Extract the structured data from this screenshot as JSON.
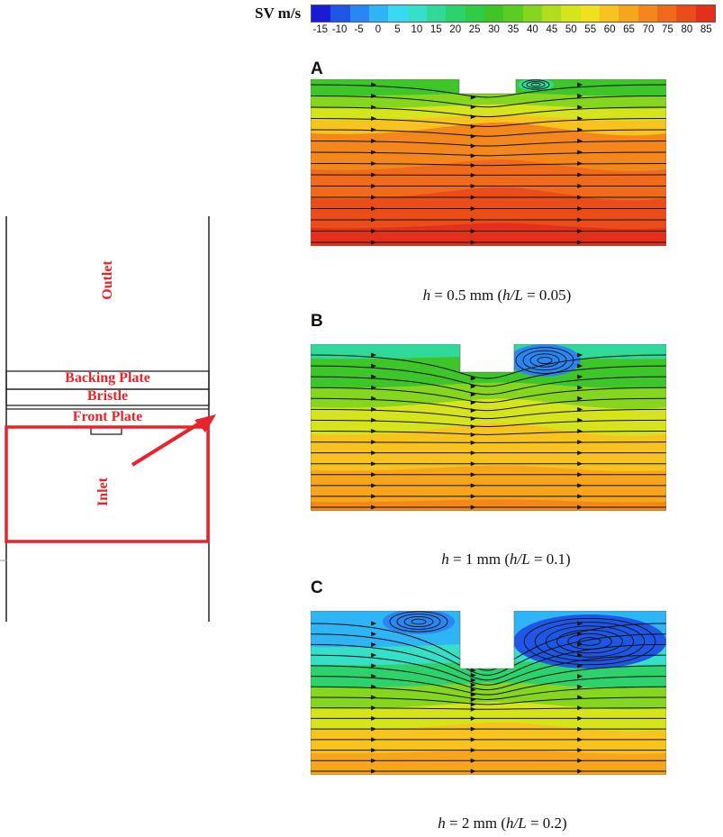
{
  "legend": {
    "title": "SV m/s",
    "ticks": [
      "-15",
      "-10",
      "-5",
      "0",
      "5",
      "10",
      "15",
      "20",
      "25",
      "30",
      "35",
      "40",
      "45",
      "50",
      "55",
      "60",
      "65",
      "70",
      "75",
      "80",
      "85"
    ],
    "colors": [
      "#1b1bd6",
      "#1e56e6",
      "#2a86f2",
      "#2fb4f6",
      "#3bd8f2",
      "#36e0c8",
      "#2fd99a",
      "#2ed26c",
      "#2fcb44",
      "#3ec52a",
      "#5ccc22",
      "#86d51e",
      "#b0dd1e",
      "#d6e41e",
      "#f0e020",
      "#f7c41f",
      "#f6a51d",
      "#f3871b",
      "#ef6a1a",
      "#ea4d1a",
      "#e3301a"
    ]
  },
  "schematic": {
    "outlet_label": "Outlet",
    "backing_plate_label": "Backing Plate",
    "bristle_label": "Bristle",
    "front_plate_label": "Front Plate",
    "inlet_label": "Inlet",
    "highlight_color": "#e8232b"
  },
  "panels": [
    {
      "letter": "A",
      "caption_italic_h": "h",
      "caption_mid": " = 0.5 mm (",
      "caption_italic_hl": "h/L",
      "caption_end": " = 0.05)"
    },
    {
      "letter": "B",
      "caption_italic_h": "h",
      "caption_mid": " = 1 mm (",
      "caption_italic_hl": "h/L",
      "caption_end": " = 0.1)"
    },
    {
      "letter": "C",
      "caption_italic_h": "h",
      "caption_mid": " = 2 mm (",
      "caption_italic_hl": "h/L",
      "caption_end": " = 0.2)"
    }
  ]
}
